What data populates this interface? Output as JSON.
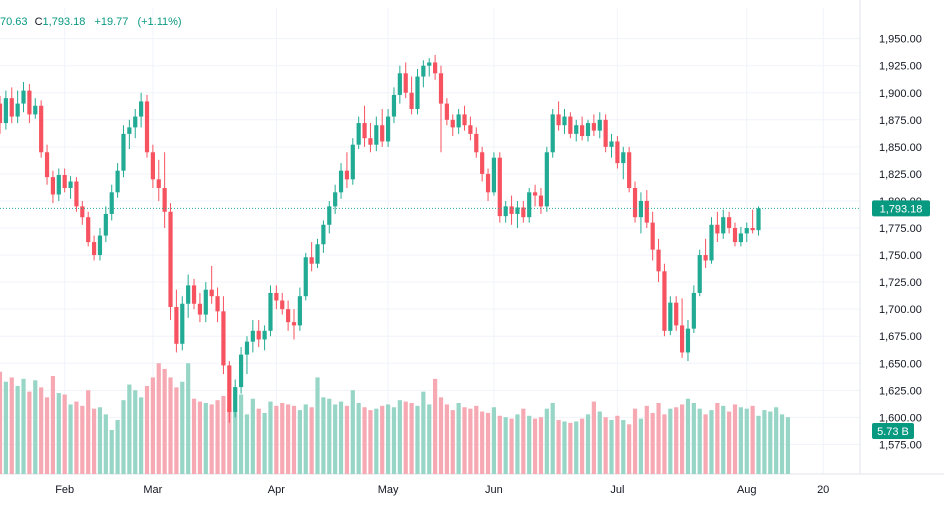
{
  "legend": {
    "open_fragment": "70.63",
    "close_label": "C",
    "close_value": "1,793.18",
    "change": "+19.77",
    "change_pct": "(+1.11%)"
  },
  "colors": {
    "up": "#089981",
    "down": "#f23645",
    "up_candle": "#22ab94",
    "down_candle": "#f7525f",
    "up_volume": "#97d6c6",
    "down_volume": "#f7a9b3",
    "price_line": "#22ab94",
    "grid": "#f0f3fa",
    "axis_text": "#131722",
    "background": "#ffffff"
  },
  "chart_data": {
    "type": "candlestick",
    "y_ticks": [
      "1,950.00",
      "1,925.00",
      "1,900.00",
      "1,875.00",
      "1,850.00",
      "1,825.00",
      "1,800.00",
      "1,775.00",
      "1,750.00",
      "1,725.00",
      "1,700.00",
      "1,675.00",
      "1,650.00",
      "1,625.00",
      "1,600.00",
      "1,575.00"
    ],
    "y_tick_values": [
      1950,
      1925,
      1900,
      1875,
      1850,
      1825,
      1800,
      1775,
      1750,
      1725,
      1700,
      1675,
      1650,
      1625,
      1600,
      1575
    ],
    "y_range": [
      1568,
      1958
    ],
    "x_labels": [
      {
        "label": "Feb",
        "index": 11
      },
      {
        "label": "Mar",
        "index": 26
      },
      {
        "label": "Apr",
        "index": 47
      },
      {
        "label": "May",
        "index": 66
      },
      {
        "label": "Jun",
        "index": 84
      },
      {
        "label": "Jul",
        "index": 105
      },
      {
        "label": "Aug",
        "index": 127
      },
      {
        "label": "20",
        "index": 140
      }
    ],
    "last_price_label": "1,793.18",
    "last_price": 1793.18,
    "volume_label": "5.73 B",
    "volume_range": [
      0,
      10
    ],
    "candles": [
      [
        1890,
        1897,
        1862,
        1872
      ],
      [
        1872,
        1902,
        1866,
        1895
      ],
      [
        1895,
        1905,
        1872,
        1878
      ],
      [
        1878,
        1902,
        1872,
        1890
      ],
      [
        1890,
        1910,
        1882,
        1902
      ],
      [
        1902,
        1908,
        1872,
        1880
      ],
      [
        1880,
        1895,
        1876,
        1888
      ],
      [
        1888,
        1893,
        1840,
        1845
      ],
      [
        1845,
        1852,
        1815,
        1822
      ],
      [
        1822,
        1828,
        1798,
        1806
      ],
      [
        1806,
        1830,
        1800,
        1824
      ],
      [
        1824,
        1830,
        1808,
        1812
      ],
      [
        1812,
        1823,
        1802,
        1818
      ],
      [
        1818,
        1822,
        1790,
        1795
      ],
      [
        1795,
        1800,
        1778,
        1785
      ],
      [
        1785,
        1790,
        1758,
        1762
      ],
      [
        1762,
        1768,
        1745,
        1750
      ],
      [
        1750,
        1775,
        1745,
        1768
      ],
      [
        1768,
        1795,
        1762,
        1788
      ],
      [
        1788,
        1815,
        1782,
        1808
      ],
      [
        1808,
        1835,
        1803,
        1828
      ],
      [
        1828,
        1870,
        1822,
        1862
      ],
      [
        1862,
        1875,
        1848,
        1868
      ],
      [
        1868,
        1885,
        1858,
        1878
      ],
      [
        1878,
        1900,
        1868,
        1892
      ],
      [
        1892,
        1898,
        1840,
        1845
      ],
      [
        1845,
        1852,
        1812,
        1820
      ],
      [
        1820,
        1838,
        1800,
        1812
      ],
      [
        1812,
        1845,
        1775,
        1790
      ],
      [
        1790,
        1798,
        1690,
        1702
      ],
      [
        1702,
        1718,
        1660,
        1668
      ],
      [
        1668,
        1712,
        1662,
        1705
      ],
      [
        1705,
        1732,
        1692,
        1722
      ],
      [
        1722,
        1728,
        1700,
        1705
      ],
      [
        1705,
        1715,
        1688,
        1695
      ],
      [
        1695,
        1725,
        1688,
        1718
      ],
      [
        1718,
        1740,
        1705,
        1712
      ],
      [
        1712,
        1720,
        1688,
        1698
      ],
      [
        1698,
        1712,
        1640,
        1648
      ],
      [
        1648,
        1652,
        1595,
        1605
      ],
      [
        1605,
        1635,
        1600,
        1628
      ],
      [
        1628,
        1665,
        1622,
        1658
      ],
      [
        1658,
        1675,
        1640,
        1670
      ],
      [
        1670,
        1690,
        1660,
        1680
      ],
      [
        1680,
        1690,
        1665,
        1672
      ],
      [
        1672,
        1685,
        1662,
        1680
      ],
      [
        1680,
        1722,
        1675,
        1715
      ],
      [
        1715,
        1722,
        1700,
        1708
      ],
      [
        1708,
        1715,
        1695,
        1700
      ],
      [
        1700,
        1708,
        1680,
        1688
      ],
      [
        1688,
        1700,
        1672,
        1685
      ],
      [
        1685,
        1720,
        1680,
        1712
      ],
      [
        1712,
        1752,
        1708,
        1748
      ],
      [
        1748,
        1762,
        1735,
        1742
      ],
      [
        1742,
        1765,
        1738,
        1760
      ],
      [
        1760,
        1782,
        1752,
        1778
      ],
      [
        1778,
        1800,
        1770,
        1795
      ],
      [
        1795,
        1815,
        1788,
        1808
      ],
      [
        1808,
        1835,
        1802,
        1828
      ],
      [
        1828,
        1845,
        1812,
        1820
      ],
      [
        1820,
        1858,
        1815,
        1852
      ],
      [
        1852,
        1878,
        1848,
        1872
      ],
      [
        1872,
        1888,
        1850,
        1858
      ],
      [
        1858,
        1872,
        1845,
        1852
      ],
      [
        1852,
        1878,
        1846,
        1870
      ],
      [
        1870,
        1885,
        1850,
        1855
      ],
      [
        1855,
        1885,
        1850,
        1878
      ],
      [
        1878,
        1905,
        1872,
        1898
      ],
      [
        1898,
        1925,
        1890,
        1918
      ],
      [
        1918,
        1928,
        1895,
        1900
      ],
      [
        1900,
        1915,
        1880,
        1885
      ],
      [
        1885,
        1922,
        1880,
        1915
      ],
      [
        1915,
        1930,
        1905,
        1925
      ],
      [
        1925,
        1932,
        1915,
        1928
      ],
      [
        1928,
        1935,
        1912,
        1918
      ],
      [
        1918,
        1925,
        1845,
        1890
      ],
      [
        1890,
        1895,
        1870,
        1875
      ],
      [
        1875,
        1880,
        1860,
        1868
      ],
      [
        1868,
        1885,
        1862,
        1880
      ],
      [
        1880,
        1888,
        1865,
        1870
      ],
      [
        1870,
        1878,
        1856,
        1862
      ],
      [
        1862,
        1868,
        1840,
        1845
      ],
      [
        1845,
        1850,
        1818,
        1825
      ],
      [
        1825,
        1830,
        1800,
        1808
      ],
      [
        1808,
        1845,
        1805,
        1840
      ],
      [
        1840,
        1845,
        1780,
        1786
      ],
      [
        1786,
        1800,
        1780,
        1795
      ],
      [
        1795,
        1805,
        1778,
        1788
      ],
      [
        1788,
        1800,
        1775,
        1794
      ],
      [
        1794,
        1800,
        1780,
        1785
      ],
      [
        1785,
        1812,
        1780,
        1808
      ],
      [
        1808,
        1815,
        1795,
        1805
      ],
      [
        1805,
        1812,
        1788,
        1795
      ],
      [
        1795,
        1850,
        1790,
        1845
      ],
      [
        1845,
        1885,
        1840,
        1880
      ],
      [
        1880,
        1892,
        1865,
        1870
      ],
      [
        1870,
        1885,
        1862,
        1878
      ],
      [
        1878,
        1882,
        1858,
        1862
      ],
      [
        1862,
        1875,
        1855,
        1870
      ],
      [
        1870,
        1878,
        1856,
        1860
      ],
      [
        1860,
        1875,
        1855,
        1872
      ],
      [
        1872,
        1880,
        1860,
        1865
      ],
      [
        1865,
        1882,
        1858,
        1875
      ],
      [
        1875,
        1880,
        1845,
        1850
      ],
      [
        1850,
        1862,
        1840,
        1855
      ],
      [
        1855,
        1860,
        1830,
        1835
      ],
      [
        1835,
        1850,
        1820,
        1845
      ],
      [
        1845,
        1850,
        1808,
        1812
      ],
      [
        1812,
        1818,
        1780,
        1785
      ],
      [
        1785,
        1808,
        1770,
        1800
      ],
      [
        1800,
        1810,
        1775,
        1780
      ],
      [
        1780,
        1790,
        1745,
        1755
      ],
      [
        1755,
        1765,
        1725,
        1735
      ],
      [
        1735,
        1742,
        1675,
        1680
      ],
      [
        1680,
        1712,
        1676,
        1706
      ],
      [
        1706,
        1712,
        1680,
        1685
      ],
      [
        1685,
        1710,
        1655,
        1660
      ],
      [
        1660,
        1690,
        1652,
        1682
      ],
      [
        1682,
        1722,
        1678,
        1715
      ],
      [
        1715,
        1755,
        1712,
        1750
      ],
      [
        1750,
        1765,
        1738,
        1745
      ],
      [
        1745,
        1785,
        1742,
        1778
      ],
      [
        1778,
        1790,
        1762,
        1770
      ],
      [
        1770,
        1792,
        1765,
        1785
      ],
      [
        1785,
        1790,
        1770,
        1775
      ],
      [
        1775,
        1780,
        1758,
        1762
      ],
      [
        1762,
        1776,
        1758,
        1770
      ],
      [
        1770,
        1780,
        1762,
        1775
      ],
      [
        1775,
        1792,
        1770,
        1773
      ],
      [
        1773,
        1795,
        1768,
        1793.18
      ]
    ],
    "volumes": [
      7.2,
      6.5,
      6.8,
      6.2,
      6.7,
      5.8,
      6.6,
      6.1,
      5.4,
      6.9,
      5.7,
      5.6,
      4.9,
      5.1,
      4.8,
      5.9,
      4.6,
      4.7,
      4.2,
      3.1,
      3.8,
      5.2,
      6.3,
      5.9,
      5.4,
      6.2,
      6.8,
      7.8,
      7.4,
      6.8,
      6.1,
      6.5,
      7.8,
      5.3,
      5.1,
      5.0,
      4.9,
      5.2,
      5.5,
      4.7,
      4.4,
      5.6,
      4.2,
      5.3,
      4.6,
      4.3,
      5.1,
      4.8,
      5.0,
      4.9,
      4.8,
      4.5,
      4.9,
      4.7,
      6.8,
      5.4,
      5.3,
      4.9,
      5.1,
      4.8,
      5.9,
      5.0,
      4.7,
      4.5,
      4.6,
      4.8,
      4.9,
      4.7,
      5.2,
      5.1,
      5.0,
      4.8,
      5.8,
      4.9,
      6.7,
      5.4,
      4.9,
      4.5,
      5.0,
      4.7,
      4.6,
      4.8,
      4.4,
      4.3,
      4.7,
      4.1,
      4.0,
      3.9,
      4.2,
      4.6,
      4.1,
      3.9,
      4.0,
      4.6,
      5.0,
      3.8,
      3.7,
      3.6,
      3.7,
      3.9,
      4.2,
      5.1,
      4.4,
      4.0,
      3.8,
      4.1,
      3.8,
      3.5,
      4.6,
      3.9,
      4.8,
      4.3,
      5.0,
      4.2,
      4.6,
      4.7,
      4.9,
      5.3,
      5.0,
      4.6,
      4.2,
      4.5,
      5.0,
      4.8,
      4.4,
      4.9,
      4.7,
      4.6,
      4.8,
      4.1,
      4.5,
      4.4,
      4.7,
      4.2,
      4.0
    ]
  }
}
